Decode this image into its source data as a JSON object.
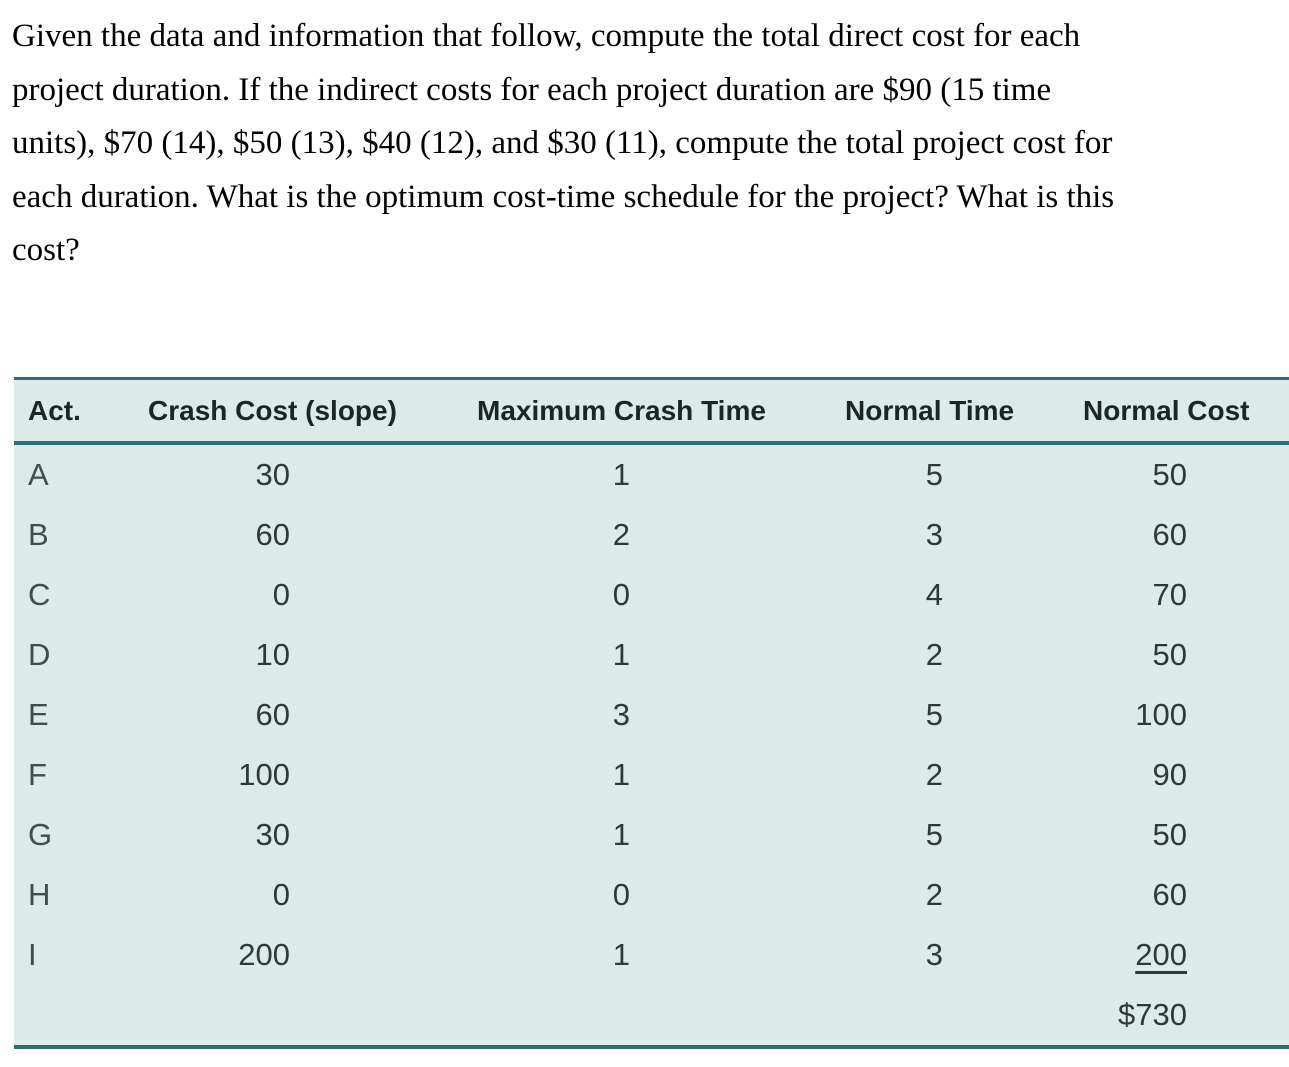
{
  "question": {
    "lines": [
      "Given the data and information that follow, compute the total direct cost for each",
      "project duration. If the indirect costs for each project duration are $90 (15 time",
      "units), $70 (14), $50 (13), $40 (12), and $30 (11), compute the total project cost for",
      "each duration. What is the optimum cost-time schedule for the project? What is this",
      "cost?"
    ]
  },
  "table": {
    "columns": [
      "Act.",
      "Crash Cost (slope)",
      "Maximum Crash Time",
      "Normal Time",
      "Normal Cost"
    ],
    "rows": [
      {
        "act": "A",
        "crash_cost": "30",
        "max_crash_time": "1",
        "normal_time": "5",
        "normal_cost": "50"
      },
      {
        "act": "B",
        "crash_cost": "60",
        "max_crash_time": "2",
        "normal_time": "3",
        "normal_cost": "60"
      },
      {
        "act": "C",
        "crash_cost": "0",
        "max_crash_time": "0",
        "normal_time": "4",
        "normal_cost": "70"
      },
      {
        "act": "D",
        "crash_cost": "10",
        "max_crash_time": "1",
        "normal_time": "2",
        "normal_cost": "50"
      },
      {
        "act": "E",
        "crash_cost": "60",
        "max_crash_time": "3",
        "normal_time": "5",
        "normal_cost": "100"
      },
      {
        "act": "F",
        "crash_cost": "100",
        "max_crash_time": "1",
        "normal_time": "2",
        "normal_cost": "90"
      },
      {
        "act": "G",
        "crash_cost": "30",
        "max_crash_time": "1",
        "normal_time": "5",
        "normal_cost": "50"
      },
      {
        "act": "H",
        "crash_cost": "0",
        "max_crash_time": "0",
        "normal_time": "2",
        "normal_cost": "60"
      },
      {
        "act": "I",
        "crash_cost": "200",
        "max_crash_time": "1",
        "normal_time": "3",
        "normal_cost": "200"
      }
    ],
    "total_normal_cost": "$730"
  },
  "colors": {
    "table_background": "#dcebe7",
    "table_border": "#2e6c78",
    "header_text": "#1c2527",
    "body_text": "#30383a",
    "question_text": "#000000"
  }
}
